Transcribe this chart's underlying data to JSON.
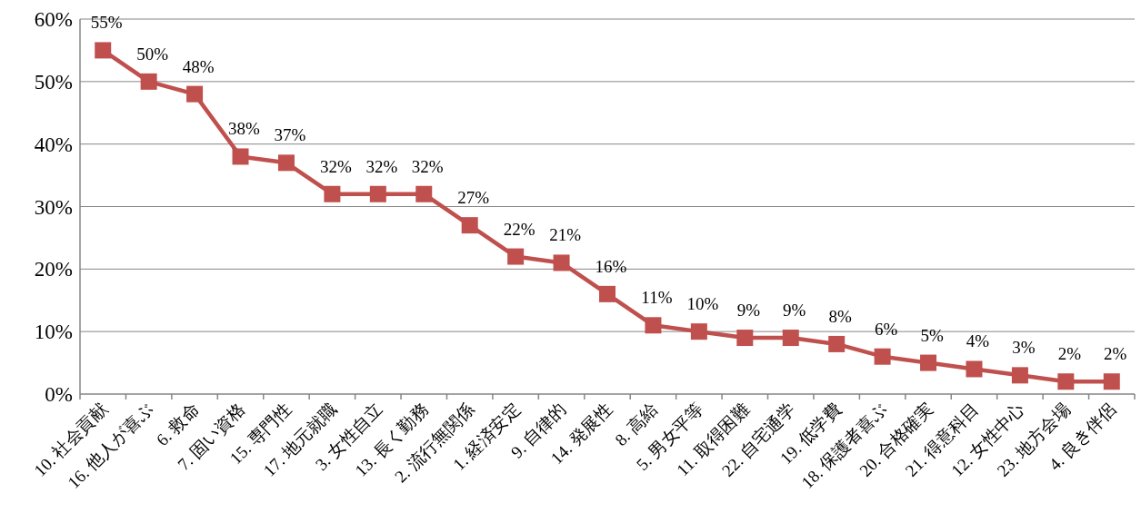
{
  "chart_data": {
    "type": "line",
    "categories": [
      "10. 社会貢献",
      "16. 他人が喜ぶ",
      "6. 救命",
      "7. 固い資格",
      "15. 専門性",
      "17. 地元就職",
      "3. 女性自立",
      "13. 長く勤務",
      "2. 流行無関係",
      "1. 経済安定",
      "9. 自律的",
      "14. 発展性",
      "8. 高給",
      "5. 男女平等",
      "11. 取得困難",
      "22. 自宅通学",
      "19. 低学費",
      "18. 保護者喜ぶ",
      "20. 合格確実",
      "21. 得意科目",
      "12. 女性中心",
      "23. 地方会場",
      "4. 良き伴侶"
    ],
    "series": [
      {
        "color": "#c0504d",
        "values": [
          55,
          50,
          48,
          38,
          37,
          32,
          32,
          32,
          27,
          22,
          21,
          16,
          11,
          10,
          9,
          9,
          8,
          6,
          5,
          4,
          3,
          2,
          2
        ],
        "value_labels": [
          "55%",
          "50%",
          "48%",
          "38%",
          "37%",
          "32%",
          "32%",
          "32%",
          "27%",
          "22%",
          "21%",
          "16%",
          "11%",
          "10%",
          "9%",
          "9%",
          "8%",
          "6%",
          "5%",
          "4%",
          "3%",
          "2%",
          "2%"
        ]
      }
    ],
    "ylim": [
      0,
      60
    ],
    "yticks": [
      {
        "value": 0,
        "label": "0%"
      },
      {
        "value": 10,
        "label": "10%"
      },
      {
        "value": 20,
        "label": "20%"
      },
      {
        "value": 30,
        "label": "30%"
      },
      {
        "value": 40,
        "label": "40%"
      },
      {
        "value": 50,
        "label": "50%"
      },
      {
        "value": 60,
        "label": "60%"
      }
    ],
    "grid": "y",
    "marker": "square",
    "line_style": "solid"
  }
}
